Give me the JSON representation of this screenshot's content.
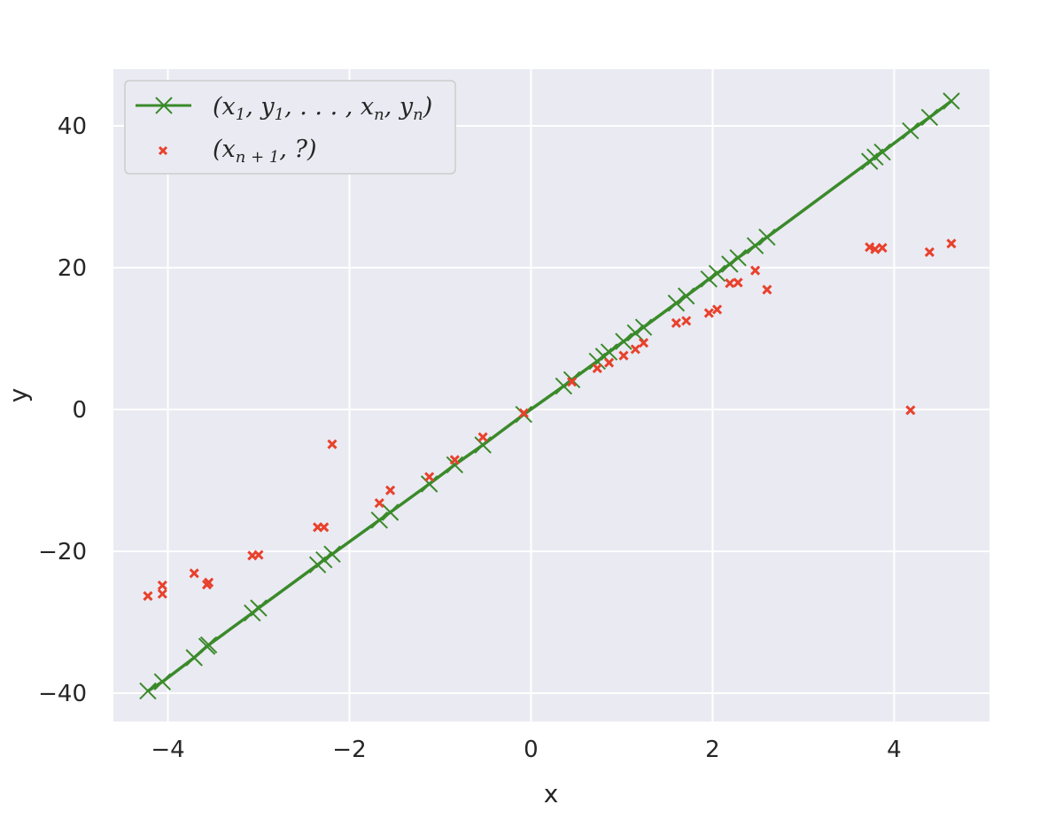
{
  "chart_data": {
    "type": "scatter",
    "xlabel": "x",
    "ylabel": "y",
    "xlim": [
      -4.6,
      5.05
    ],
    "ylim": [
      -44,
      48
    ],
    "xticks": [
      -4,
      -2,
      0,
      2,
      4
    ],
    "yticks": [
      -40,
      -20,
      0,
      20,
      40
    ],
    "xtick_labels": [
      "−4",
      "−2",
      "0",
      "2",
      "4"
    ],
    "ytick_labels": [
      "−40",
      "−20",
      "0",
      "20",
      "40"
    ],
    "grid": true,
    "legend_position": "upper-left",
    "colors": {
      "background": "#eaeaf2",
      "grid": "#ffffff",
      "context_series": "#3a8a2a",
      "query_series": "#e8412c"
    },
    "series": [
      {
        "name": "(x1, y1, . . . , xn, yn)",
        "style": "line-x-markers",
        "x": [
          -4.22,
          -4.06,
          -3.71,
          -3.57,
          -3.55,
          -3.07,
          -3.0,
          -2.35,
          -2.28,
          -2.19,
          -1.67,
          -1.55,
          -1.12,
          -0.84,
          -0.53,
          -0.08,
          0.36,
          0.45,
          0.73,
          0.8,
          0.86,
          1.02,
          1.15,
          1.24,
          1.6,
          1.71,
          1.96,
          2.05,
          2.19,
          2.28,
          2.47,
          2.6,
          3.73,
          3.79,
          3.87,
          4.18,
          4.39,
          4.63
        ],
        "y": [
          -39.7,
          -38.4,
          -35.0,
          -33.4,
          -33.2,
          -28.7,
          -28.0,
          -21.9,
          -21.2,
          -20.4,
          -15.6,
          -14.5,
          -10.5,
          -7.8,
          -5.0,
          -0.7,
          3.3,
          4.2,
          6.8,
          7.5,
          8.1,
          9.6,
          10.8,
          11.6,
          15.0,
          16.0,
          18.4,
          19.2,
          20.5,
          21.4,
          23.1,
          24.3,
          35.0,
          35.6,
          36.3,
          39.3,
          41.2,
          43.5
        ]
      },
      {
        "name": "(xn+1, ?)",
        "style": "x-markers",
        "x": [
          -4.22,
          -4.06,
          -4.06,
          -3.71,
          -3.57,
          -3.55,
          -3.07,
          -3.0,
          -2.35,
          -2.28,
          -2.19,
          -1.67,
          -1.55,
          -1.12,
          -0.84,
          -0.53,
          -0.08,
          0.45,
          0.73,
          0.86,
          1.02,
          1.15,
          1.24,
          1.6,
          1.71,
          1.96,
          2.05,
          2.19,
          2.28,
          2.47,
          2.6,
          3.73,
          3.79,
          3.87,
          4.18,
          4.39,
          4.63
        ],
        "y": [
          -26.3,
          -26.0,
          -24.8,
          -23.1,
          -24.7,
          -24.4,
          -20.6,
          -20.5,
          -16.6,
          -16.6,
          -4.9,
          -13.2,
          -11.4,
          -9.5,
          -7.1,
          -3.9,
          -0.5,
          3.9,
          5.8,
          6.6,
          7.6,
          8.5,
          9.4,
          12.2,
          12.5,
          13.6,
          14.1,
          17.8,
          17.9,
          19.6,
          16.9,
          22.9,
          22.6,
          22.8,
          -0.1,
          22.2,
          23.4
        ]
      }
    ]
  }
}
